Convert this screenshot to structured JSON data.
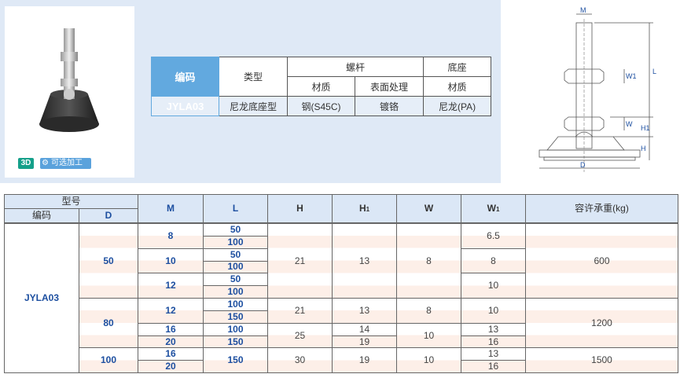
{
  "badges": {
    "three_d": "3D",
    "machining": "可选加工",
    "machining_icon": "gears-icon"
  },
  "spec_table": {
    "code_label": "编码",
    "type_label": "类型",
    "screw_label": "螺杆",
    "base_label": "底座",
    "material_label": "材质",
    "surface_label": "表面处理",
    "base_material_label": "材质",
    "code": "JYLA03",
    "type": "尼龙底座型",
    "screw_material": "钢(S45C)",
    "surface": "镀铬",
    "base_material": "尼龙(PA)"
  },
  "drawing": {
    "labels": {
      "M": "M",
      "L": "L",
      "W1": "W1",
      "W": "W",
      "H1": "H1",
      "H": "H",
      "D": "D"
    }
  },
  "main_table": {
    "headers": {
      "model": "型号",
      "code": "编码",
      "D": "D",
      "M": "M",
      "L": "L",
      "H": "H",
      "H1": "H",
      "H1_sub": "1",
      "W": "W",
      "W1": "W",
      "W1_sub": "1",
      "load": "容许承重(kg)"
    },
    "code": "JYLA03",
    "groups": [
      {
        "D": "50",
        "H": "21",
        "H1": "13",
        "W": "8",
        "load": "600",
        "M": [
          {
            "M": "8",
            "L": [
              "50",
              "100"
            ],
            "W1": "6.5"
          },
          {
            "M": "10",
            "L": [
              "50",
              "100"
            ],
            "W1": "8"
          },
          {
            "M": "12",
            "L": [
              "50",
              "100"
            ],
            "W1": "10"
          }
        ]
      },
      {
        "D": "80",
        "load": "1200",
        "a": {
          "M": "12",
          "L": [
            "100",
            "150"
          ],
          "H": "21",
          "H1": "13",
          "W": "8",
          "W1": "10"
        },
        "b": {
          "M": [
            "16",
            "20"
          ],
          "L": [
            "100",
            "150"
          ],
          "H": "25",
          "H1": [
            "14",
            "19"
          ],
          "W": "10",
          "W1": [
            "13",
            "16"
          ]
        }
      },
      {
        "D": "100",
        "M": [
          "16",
          "20"
        ],
        "L": "150",
        "H": "30",
        "H1": "19",
        "W": "10",
        "W1": [
          "13",
          "16"
        ],
        "load": "1500"
      }
    ]
  }
}
